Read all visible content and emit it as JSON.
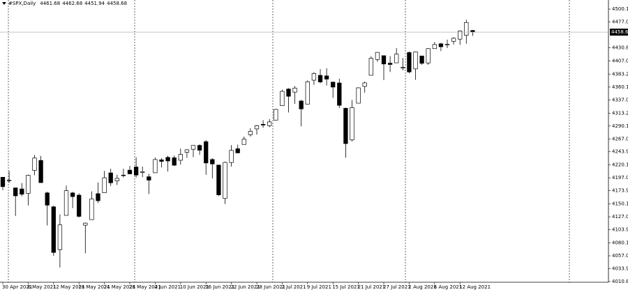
{
  "chart_data": {
    "type": "candlestick",
    "title": "#SPX,Daily",
    "categories": [
      "30 Apr 2021",
      null,
      null,
      null,
      "6 May 2021",
      null,
      null,
      null,
      "12 May 2021",
      null,
      null,
      null,
      "18 May 2021",
      null,
      null,
      null,
      "24 May 2021",
      null,
      null,
      null,
      "28 May 2021",
      null,
      null,
      null,
      "4 Jun 2021",
      null,
      null,
      null,
      "10 Jun 2021",
      null,
      null,
      null,
      "16 Jun 2021",
      null,
      null,
      null,
      "22 Jun 2021",
      null,
      null,
      null,
      "28 Jun 2021",
      null,
      null,
      null,
      "2 Jul 2021",
      null,
      null,
      null,
      "9 Jul 2021",
      null,
      null,
      null,
      "15 Jul 2021",
      null,
      null,
      null,
      "21 Jul 2021",
      null,
      null,
      null,
      "27 Jul 2021",
      null,
      null,
      null,
      "2 Aug 2021",
      null,
      null,
      null,
      "6 Aug 2021",
      null,
      null,
      null,
      "12 Aug 2021",
      null,
      null
    ],
    "open": [
      4198.1,
      4191.9,
      4179.0,
      4177.1,
      4169.1,
      4210.3,
      4228.3,
      4170.0,
      4145.0,
      4068.0,
      4129.6,
      4169.9,
      4165.9,
      4112.0,
      4122.0,
      4168.6,
      4170.2,
      4205.9,
      4191.6,
      4201.9,
      4210.8,
      4216.5,
      4206.8,
      4199.0,
      4206.1,
      4229.3,
      4233.8,
      4233.0,
      4228.6,
      4242.9,
      4248.3,
      4255.3,
      4262.0,
      4230.0,
      4220.0,
      4160.0,
      4224.6,
      4249.3,
      4257.0,
      4274.5,
      4284.9,
      4293.2,
      4290.7,
      4300.7,
      4326.6,
      4356.5,
      4351.0,
      4335.0,
      4329.4,
      4372.4,
      4381.1,
      4380.1,
      4369.0,
      4367.4,
      4322.0,
      4265.1,
      4331.1,
      4361.3,
      4381.2,
      4409.6,
      4416.4,
      4402.9,
      4403.6,
      4395.1,
      4422.0,
      4392.7,
      4415.9,
      4403.3,
      4429.1,
      4437.8,
      4435.8,
      4442.2,
      4446.1,
      4453.0,
      4461.68
    ],
    "high": [
      4198.5,
      4209.4,
      4179.0,
      4187.7,
      4202.7,
      4238.0,
      4236.4,
      4172.0,
      4147.0,
      4131.6,
      4183.1,
      4171.9,
      4169.1,
      4116.9,
      4172.8,
      4188.7,
      4209.5,
      4213.4,
      4202.6,
      4213.4,
      4218.4,
      4234.1,
      4217.4,
      4204.4,
      4233.5,
      4232.3,
      4236.7,
      4237.1,
      4249.7,
      4248.4,
      4255.6,
      4257.2,
      4265.0,
      4232.3,
      4220.0,
      4226.2,
      4255.8,
      4256.6,
      4271.3,
      4286.1,
      4292.1,
      4300.5,
      4302.4,
      4320.7,
      4355.4,
      4358.0,
      4361.9,
      4337.0,
      4372.0,
      4386.7,
      4392.4,
      4393.7,
      4369.0,
      4375.1,
      4323.0,
      4336.8,
      4359.7,
      4369.9,
      4415.2,
      4422.7,
      4416.4,
      4415.5,
      4430.0,
      4412.3,
      4424.0,
      4423.8,
      4416.2,
      4430.0,
      4440.8,
      4439.4,
      4445.2,
      4449.4,
      4461.8,
      4481.0,
      4462.68
    ],
    "low": [
      4174.9,
      4188.0,
      4128.6,
      4164.0,
      4147.3,
      4201.6,
      4188.1,
      4111.5,
      4056.9,
      4036.0,
      4129.6,
      4142.7,
      4126.0,
      4061.4,
      4122.0,
      4151.7,
      4170.2,
      4182.5,
      4184.1,
      4197.8,
      4203.6,
      4197.6,
      4198.3,
      4167.9,
      4206.1,
      4215.7,
      4208.4,
      4218.7,
      4220.6,
      4233.0,
      4234.1,
      4238.4,
      4202.4,
      4196.1,
      4164.4,
      4150.0,
      4217.3,
      4241.4,
      4257.0,
      4271.2,
      4274.7,
      4287.0,
      4288.0,
      4300.7,
      4326.6,
      4314.4,
      4329.8,
      4289.4,
      4329.4,
      4364.0,
      4366.9,
      4362.9,
      4340.7,
      4322.5,
      4233.1,
      4262.1,
      4331.1,
      4350.1,
      4381.2,
      4405.5,
      4372.5,
      4387.0,
      4403.6,
      4389.9,
      4384.8,
      4373.0,
      4400.2,
      4400.1,
      4429.1,
      4424.7,
      4430.0,
      4436.4,
      4436.0,
      4438.0,
      4451.94
    ],
    "close": [
      4181.2,
      4192.7,
      4164.7,
      4167.6,
      4201.6,
      4232.6,
      4188.4,
      4148.0,
      4063.0,
      4112.5,
      4173.9,
      4163.3,
      4127.8,
      4115.7,
      4159.1,
      4155.9,
      4197.1,
      4188.1,
      4196.0,
      4200.9,
      4204.1,
      4202.0,
      4208.1,
      4192.9,
      4229.9,
      4226.5,
      4227.3,
      4219.6,
      4239.2,
      4247.4,
      4255.2,
      4246.6,
      4223.7,
      4221.9,
      4166.5,
      4224.8,
      4246.4,
      4241.8,
      4266.5,
      4280.7,
      4290.6,
      4291.8,
      4297.5,
      4319.9,
      4352.3,
      4343.5,
      4358.1,
      4320.8,
      4369.6,
      4384.6,
      4369.2,
      4374.3,
      4360.0,
      4327.2,
      4258.5,
      4323.1,
      4358.7,
      4367.5,
      4411.8,
      4422.3,
      4401.5,
      4400.6,
      4419.2,
      4395.3,
      4387.2,
      4423.2,
      4402.7,
      4429.1,
      4436.5,
      4432.4,
      4436.8,
      4447.7,
      4460.8,
      4476.0,
      4458.68
    ],
    "up_color": "#ffffff",
    "down_color": "#000000",
    "grid": false,
    "ylim": [
      4009.5,
      4516.4
    ],
    "yticks": [
      {
        "value": 4500.1,
        "label": "4500.10"
      },
      {
        "value": 4477,
        "label": "4477.00"
      },
      {
        "value": 4430.8,
        "label": "4430.80"
      },
      {
        "value": 4407,
        "label": "4407.00"
      },
      {
        "value": 4383.2,
        "label": "4383.20"
      },
      {
        "value": 4360.1,
        "label": "4360.10"
      },
      {
        "value": 4337,
        "label": "4337.00"
      },
      {
        "value": 4313.2,
        "label": "4313.20"
      },
      {
        "value": 4290.1,
        "label": "4290.10"
      },
      {
        "value": 4267,
        "label": "4267.00"
      },
      {
        "value": 4243.9,
        "label": "4243.90"
      },
      {
        "value": 4220.1,
        "label": "4220.10"
      },
      {
        "value": 4197,
        "label": "4197.00"
      },
      {
        "value": 4173.9,
        "label": "4173.90"
      },
      {
        "value": 4150.1,
        "label": "4150.10"
      },
      {
        "value": 4127,
        "label": "4127.00"
      },
      {
        "value": 4103.9,
        "label": "4103.90"
      },
      {
        "value": 4080.1,
        "label": "4080.10"
      },
      {
        "value": 4057,
        "label": "4057.00"
      },
      {
        "value": 4033.9,
        "label": "4033.90"
      },
      {
        "value": 4010.8,
        "label": "4010.80"
      }
    ]
  }
}
